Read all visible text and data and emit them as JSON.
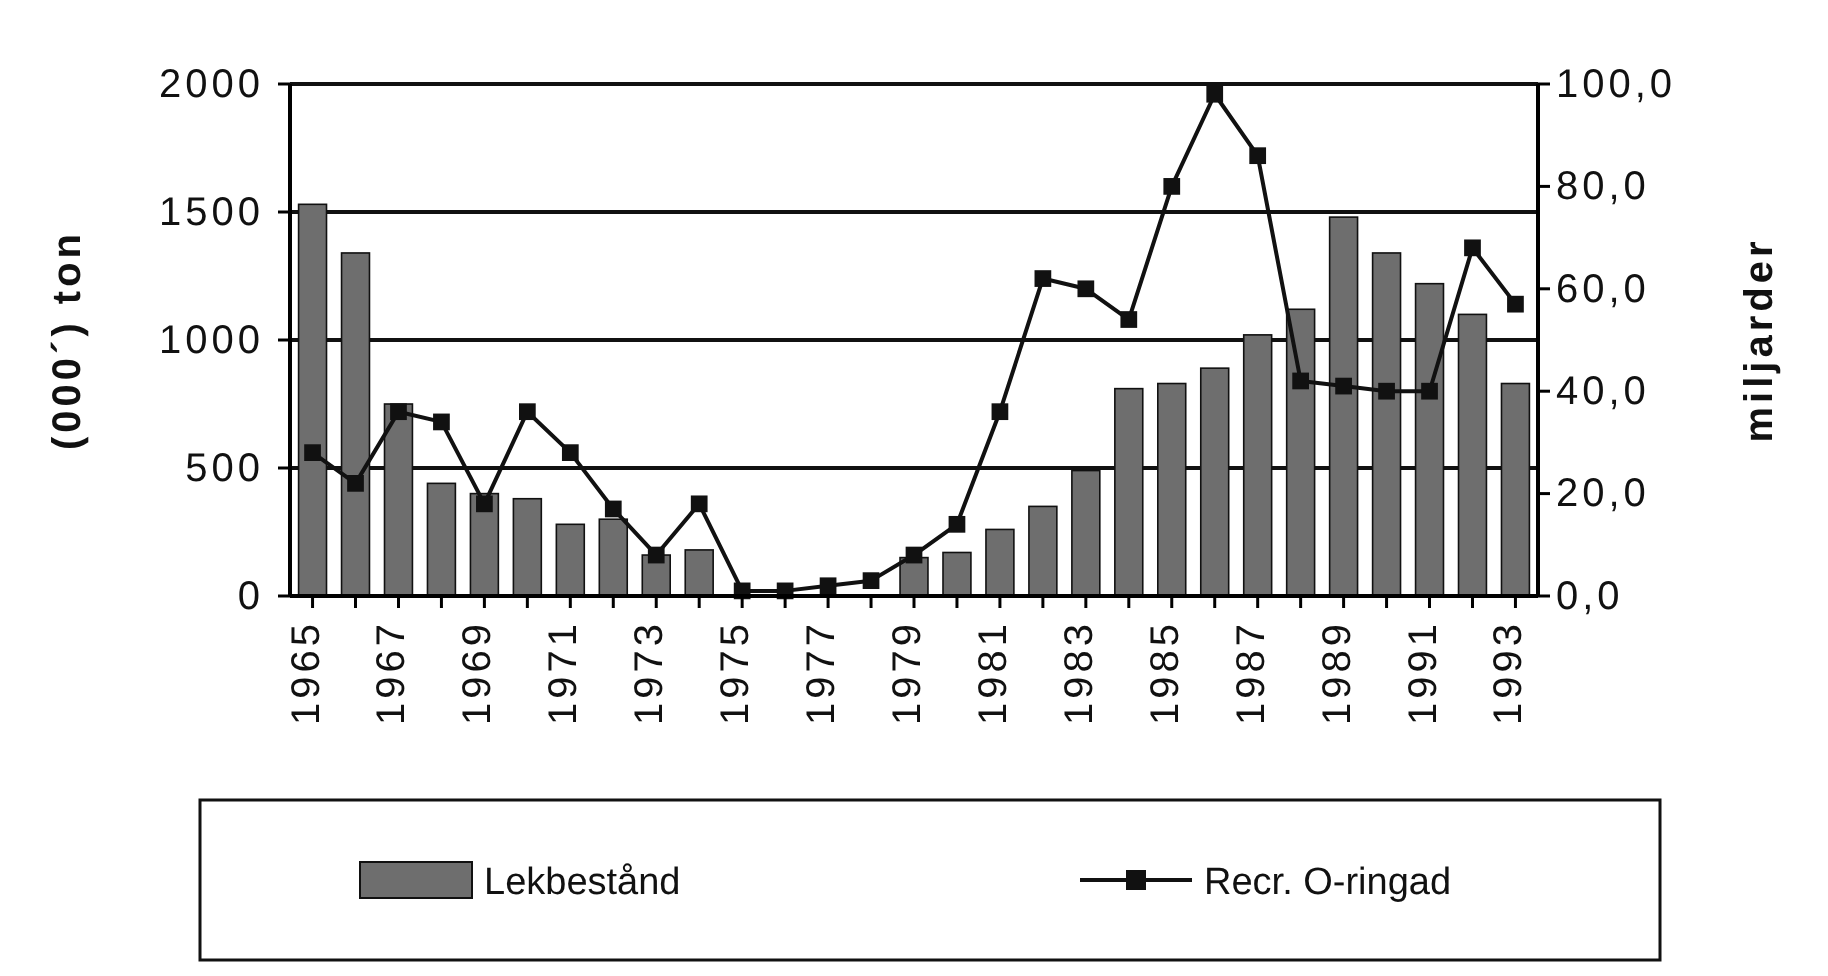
{
  "chart_data": {
    "type": "bar",
    "ylabel": "(000´)  ton",
    "y2label": "miljarder",
    "categories": [
      "1965",
      null,
      "1967",
      null,
      "1969",
      null,
      "1971",
      null,
      "1973",
      null,
      "1975",
      null,
      "1977",
      null,
      "1979",
      null,
      "1981",
      null,
      "1983",
      null,
      "1985",
      null,
      "1987",
      null,
      "1989",
      null,
      "1991",
      null,
      "1993"
    ],
    "series": [
      {
        "name": "Lekbestånd",
        "color": "#6e6e6e",
        "values": [
          1530,
          1340,
          750,
          440,
          400,
          380,
          280,
          300,
          160,
          180,
          null,
          null,
          null,
          null,
          150,
          170,
          260,
          350,
          490,
          810,
          830,
          890,
          1020,
          1120,
          1480,
          1340,
          1220,
          1100,
          830
        ]
      },
      {
        "name": "Recr. O-ringad",
        "type": "line",
        "axis": "y2",
        "color": "#111111",
        "marker": "square",
        "values": [
          28,
          22,
          36,
          34,
          18,
          36,
          28,
          17,
          8,
          18,
          1,
          1,
          2,
          3,
          8,
          14,
          36,
          62,
          60,
          54,
          80,
          98,
          86,
          42,
          41,
          40,
          40,
          68,
          57
        ]
      }
    ],
    "ylim": [
      0,
      2000
    ],
    "yticks": [
      0,
      500,
      1000,
      1500,
      2000
    ],
    "y2lim": [
      0,
      100
    ],
    "y2ticks": [
      {
        "value": 0,
        "label": "0,0"
      },
      {
        "value": 20,
        "label": "20,0"
      },
      {
        "value": 40,
        "label": "40,0"
      },
      {
        "value": 60,
        "label": "60,0"
      },
      {
        "value": 80,
        "label": "80,0"
      },
      {
        "value": 100,
        "label": "100,0"
      }
    ],
    "grid": "y",
    "legend": "bottom"
  }
}
